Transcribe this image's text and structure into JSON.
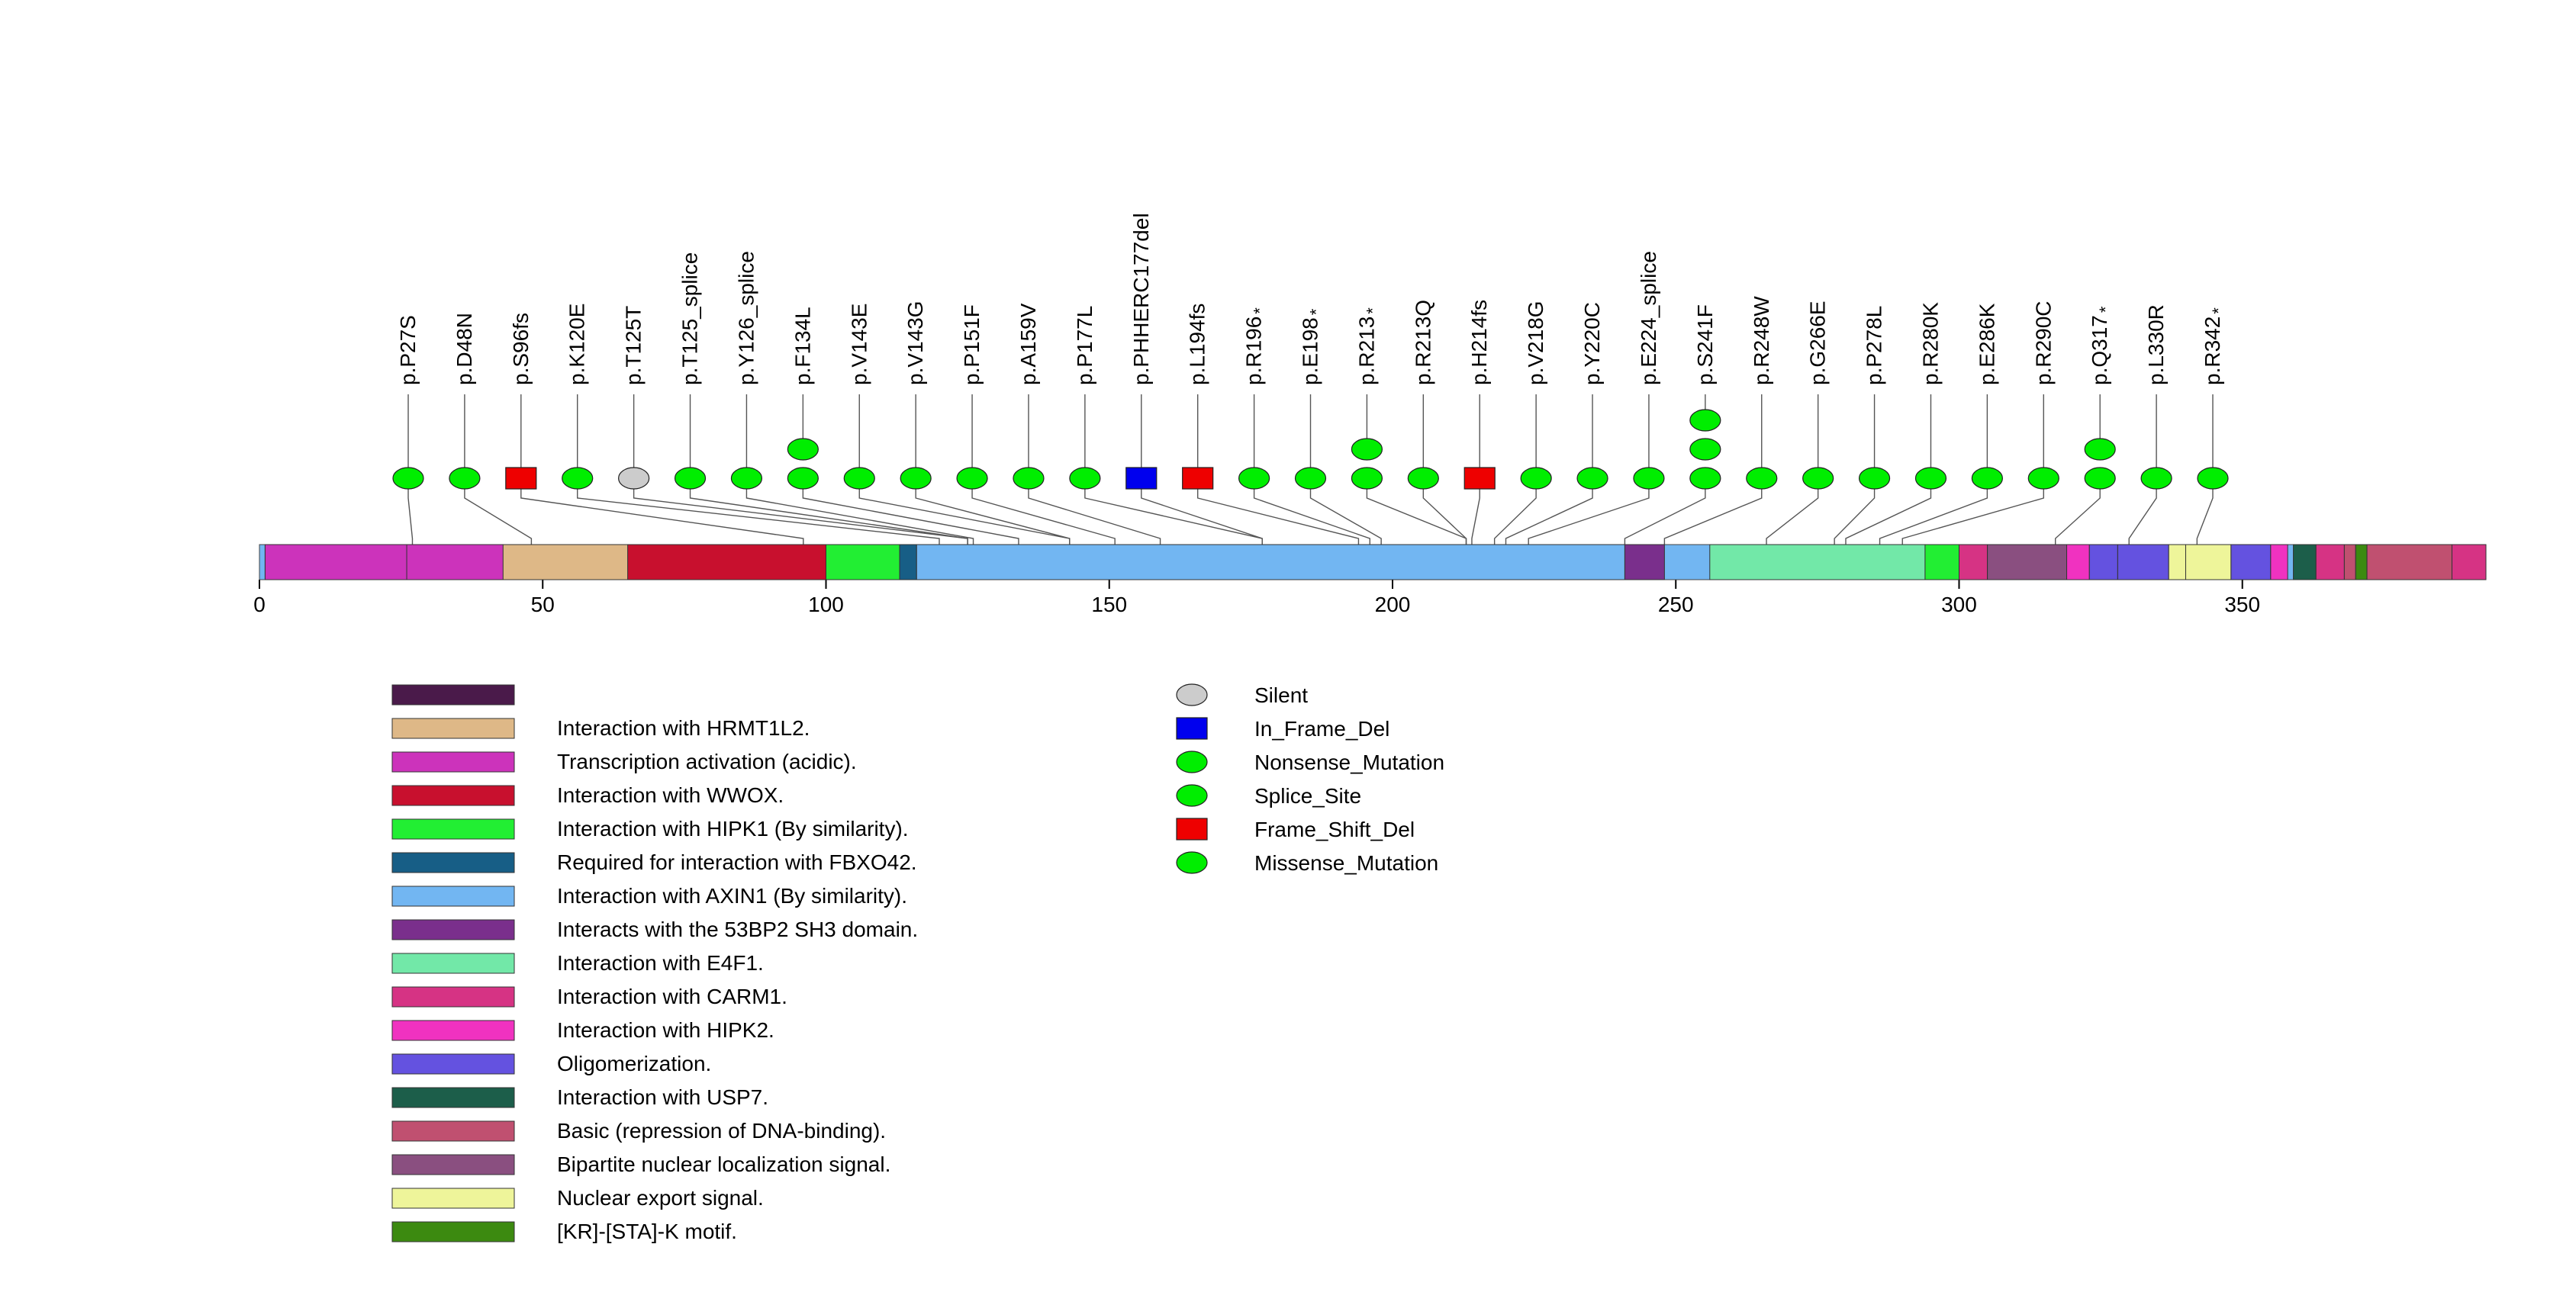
{
  "chart_data": {
    "type": "lollipop",
    "axis": {
      "min": 0,
      "max": 393,
      "ticks": [
        0,
        50,
        100,
        150,
        200,
        250,
        300,
        350
      ],
      "tick_labels": [
        "0",
        "50",
        "100",
        "150",
        "200",
        "250",
        "300",
        "350"
      ]
    },
    "domains": [
      {
        "start": 1,
        "end": 44,
        "label": "Transcription activation (acidic).",
        "color": "#CC33BB"
      },
      {
        "start": 1,
        "end": 26,
        "label": "Transcription activation (acidic).",
        "color": "#CC33BB"
      },
      {
        "start": 43,
        "end": 66,
        "label": "Interaction with HRMT1L2.",
        "color": "#DEB887"
      },
      {
        "start": 65,
        "end": 100,
        "label": "Interaction with WWOX.",
        "color": "#C8102E"
      },
      {
        "start": 100,
        "end": 113,
        "label": "Interaction with HIPK1 (By similarity).",
        "color": "#22EE33"
      },
      {
        "start": 113,
        "end": 116,
        "label": "Required for interaction with FBXO42.",
        "color": "#175E86"
      },
      {
        "start": 116,
        "end": 241,
        "label": "Interaction with AXIN1 (By similarity).",
        "color": "#72B6F2"
      },
      {
        "start": 241,
        "end": 248,
        "label": "Interacts with the 53BP2 SH3 domain.",
        "color": "#7A2F8C"
      },
      {
        "start": 256,
        "end": 294,
        "label": "Interaction with E4F1.",
        "color": "#72E8A8"
      },
      {
        "start": 294,
        "end": 300,
        "label": "Interaction with HIPK1 (By similarity).",
        "color": "#22EE33"
      },
      {
        "start": 300,
        "end": 305,
        "label": "Interaction with CARM1.",
        "color": "#D63384"
      },
      {
        "start": 305,
        "end": 322,
        "label": "Bipartite nuclear localization signal.",
        "color": "#8A4F80"
      },
      {
        "start": 319,
        "end": 323,
        "label": "Interaction with HIPK2.",
        "color": "#F032C0"
      },
      {
        "start": 323,
        "end": 328,
        "label": "Oligomerization.",
        "color": "#6452E0"
      },
      {
        "start": 328,
        "end": 337,
        "label": "Oligomerization.",
        "color": "#6452E0"
      },
      {
        "start": 337,
        "end": 340,
        "label": "Nuclear export signal.",
        "color": "#EEF59A"
      },
      {
        "start": 340,
        "end": 348,
        "label": "Nuclear export signal.",
        "color": "#EEF59A"
      },
      {
        "start": 348,
        "end": 355,
        "label": "Oligomerization.",
        "color": "#6452E0"
      },
      {
        "start": 355,
        "end": 358,
        "label": "Interaction with HIPK2.",
        "color": "#F032C0"
      },
      {
        "start": 359,
        "end": 363,
        "label": "Interaction with USP7.",
        "color": "#1C5E4A"
      },
      {
        "start": 363,
        "end": 368,
        "label": "Interaction with CARM1.",
        "color": "#D63384"
      },
      {
        "start": 368,
        "end": 370,
        "label": "Basic (repression of DNA-binding).",
        "color": "#C05070"
      },
      {
        "start": 370,
        "end": 372,
        "label": "[KR]-[STA]-K motif.",
        "color": "#3C8A10"
      },
      {
        "start": 372,
        "end": 387,
        "label": "Basic (repression of DNA-binding).",
        "color": "#C05070"
      },
      {
        "start": 387,
        "end": 393,
        "label": "Interaction with CARM1.",
        "color": "#D63384"
      }
    ],
    "mutations": [
      {
        "label": "p.P27S",
        "pos": 27,
        "type": "Missense_Mutation",
        "count": 1
      },
      {
        "label": "p.D48N",
        "pos": 48,
        "type": "Missense_Mutation",
        "count": 1
      },
      {
        "label": "p.S96fs",
        "pos": 96,
        "type": "Frame_Shift_Del",
        "count": 1
      },
      {
        "label": "p.K120E",
        "pos": 120,
        "type": "Missense_Mutation",
        "count": 1
      },
      {
        "label": "p.T125T",
        "pos": 125,
        "type": "Silent",
        "count": 1
      },
      {
        "label": "p.T125_splice",
        "pos": 125,
        "type": "Splice_Site",
        "count": 1
      },
      {
        "label": "p.Y126_splice",
        "pos": 126,
        "type": "Splice_Site",
        "count": 1
      },
      {
        "label": "p.F134L",
        "pos": 134,
        "type": "Missense_Mutation",
        "count": 2
      },
      {
        "label": "p.V143E",
        "pos": 143,
        "type": "Missense_Mutation",
        "count": 1
      },
      {
        "label": "p.V143G",
        "pos": 143,
        "type": "Missense_Mutation",
        "count": 1
      },
      {
        "label": "p.P151F",
        "pos": 151,
        "type": "Missense_Mutation",
        "count": 1
      },
      {
        "label": "p.A159V",
        "pos": 159,
        "type": "Missense_Mutation",
        "count": 1
      },
      {
        "label": "p.P177L",
        "pos": 177,
        "type": "Missense_Mutation",
        "count": 1
      },
      {
        "label": "p.PHHERC177del",
        "pos": 177,
        "type": "In_Frame_Del",
        "count": 1
      },
      {
        "label": "p.L194fs",
        "pos": 194,
        "type": "Frame_Shift_Del",
        "count": 1
      },
      {
        "label": "p.R196",
        "star": "*",
        "pos": 196,
        "type": "Nonsense_Mutation",
        "count": 1
      },
      {
        "label": "p.E198",
        "star": "*",
        "pos": 198,
        "type": "Nonsense_Mutation",
        "count": 1
      },
      {
        "label": "p.R213",
        "star": "*",
        "pos": 213,
        "type": "Nonsense_Mutation",
        "count": 2
      },
      {
        "label": "p.R213Q",
        "pos": 213,
        "type": "Missense_Mutation",
        "count": 1
      },
      {
        "label": "p.H214fs",
        "pos": 214,
        "type": "Frame_Shift_Del",
        "count": 1
      },
      {
        "label": "p.V218G",
        "pos": 218,
        "type": "Missense_Mutation",
        "count": 1
      },
      {
        "label": "p.Y220C",
        "pos": 220,
        "type": "Missense_Mutation",
        "count": 1
      },
      {
        "label": "p.E224_splice",
        "pos": 224,
        "type": "Splice_Site",
        "count": 1
      },
      {
        "label": "p.S241F",
        "pos": 241,
        "type": "Missense_Mutation",
        "count": 3
      },
      {
        "label": "p.R248W",
        "pos": 248,
        "type": "Missense_Mutation",
        "count": 1
      },
      {
        "label": "p.G266E",
        "pos": 266,
        "type": "Missense_Mutation",
        "count": 1
      },
      {
        "label": "p.P278L",
        "pos": 278,
        "type": "Missense_Mutation",
        "count": 1
      },
      {
        "label": "p.R280K",
        "pos": 280,
        "type": "Missense_Mutation",
        "count": 1
      },
      {
        "label": "p.E286K",
        "pos": 286,
        "type": "Missense_Mutation",
        "count": 1
      },
      {
        "label": "p.R290C",
        "pos": 290,
        "type": "Missense_Mutation",
        "count": 1
      },
      {
        "label": "p.Q317",
        "star": "*",
        "pos": 317,
        "type": "Nonsense_Mutation",
        "count": 2
      },
      {
        "label": "p.L330R",
        "pos": 330,
        "type": "Missense_Mutation",
        "count": 1
      },
      {
        "label": "p.R342",
        "star": "*",
        "pos": 342,
        "type": "Nonsense_Mutation",
        "count": 1
      }
    ],
    "legend_domains": [
      {
        "label": "",
        "color": "#4A1A4A"
      },
      {
        "label": "Interaction with HRMT1L2.",
        "color": "#DEB887"
      },
      {
        "label": "Transcription activation (acidic).",
        "color": "#CC33BB"
      },
      {
        "label": "Interaction with WWOX.",
        "color": "#C8102E"
      },
      {
        "label": "Interaction with HIPK1 (By similarity).",
        "color": "#22EE33"
      },
      {
        "label": "Required for interaction with FBXO42.",
        "color": "#175E86"
      },
      {
        "label": "Interaction with AXIN1 (By similarity).",
        "color": "#72B6F2"
      },
      {
        "label": "Interacts with the 53BP2 SH3 domain.",
        "color": "#7A2F8C"
      },
      {
        "label": "Interaction with E4F1.",
        "color": "#72E8A8"
      },
      {
        "label": "Interaction with CARM1.",
        "color": "#D63384"
      },
      {
        "label": "Interaction with HIPK2.",
        "color": "#F032C0"
      },
      {
        "label": "Oligomerization.",
        "color": "#6452E0"
      },
      {
        "label": "Interaction with USP7.",
        "color": "#1C5E4A"
      },
      {
        "label": "Basic (repression of DNA-binding).",
        "color": "#C05070"
      },
      {
        "label": "Bipartite nuclear localization signal.",
        "color": "#8A4F80"
      },
      {
        "label": "Nuclear export signal.",
        "color": "#EEF59A"
      },
      {
        "label": "[KR]-[STA]-K motif.",
        "color": "#3C8A10"
      }
    ],
    "legend_mutations": [
      {
        "label": "Silent",
        "shape": "ellipse",
        "color": "#CCCCCC"
      },
      {
        "label": "In_Frame_Del",
        "shape": "rect",
        "color": "#0000EE"
      },
      {
        "label": "Nonsense_Mutation",
        "shape": "ellipse",
        "color": "#00EE00"
      },
      {
        "label": "Splice_Site",
        "shape": "ellipse",
        "color": "#00EE00"
      },
      {
        "label": "Frame_Shift_Del",
        "shape": "rect",
        "color": "#EE0000"
      },
      {
        "label": "Missense_Mutation",
        "shape": "ellipse",
        "color": "#00EE00"
      }
    ],
    "type_colors": {
      "Silent": "#CCCCCC",
      "In_Frame_Del": "#0000EE",
      "Nonsense_Mutation": "#00EE00",
      "Splice_Site": "#00EE00",
      "Frame_Shift_Del": "#EE0000",
      "Missense_Mutation": "#00EE00"
    },
    "type_shapes": {
      "Silent": "ellipse",
      "In_Frame_Del": "rect",
      "Nonsense_Mutation": "ellipse",
      "Splice_Site": "ellipse",
      "Frame_Shift_Del": "rect",
      "Missense_Mutation": "ellipse"
    }
  }
}
